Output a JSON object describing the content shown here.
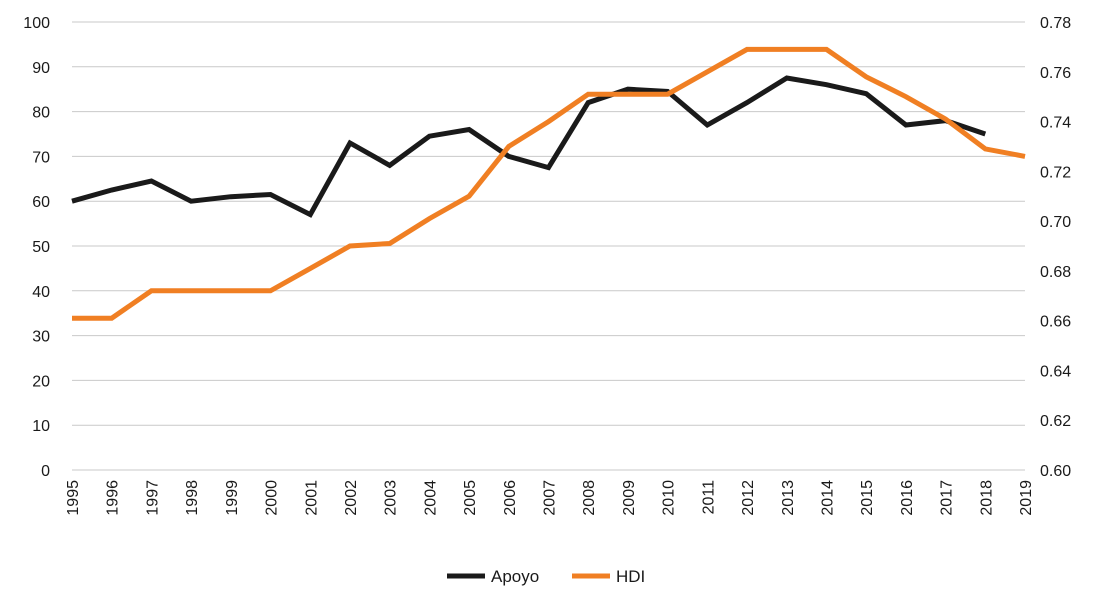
{
  "chart_data": {
    "type": "line",
    "title": "",
    "xlabel": "",
    "ylabel": "",
    "y2label": "",
    "grid": true,
    "legend_position": "bottom-center",
    "categories": [
      "1995",
      "1996",
      "1997",
      "1998",
      "1999",
      "2000",
      "2001",
      "2002",
      "2003",
      "2004",
      "2005",
      "2006",
      "2007",
      "2008",
      "2009",
      "2010",
      "2011",
      "2012",
      "2013",
      "2014",
      "2015",
      "2016",
      "2017",
      "2018",
      "2019"
    ],
    "y_left": {
      "range": [
        0,
        100
      ],
      "ticks": [
        "0",
        "10",
        "20",
        "30",
        "40",
        "50",
        "60",
        "70",
        "80",
        "90",
        "100"
      ]
    },
    "y_right": {
      "range": [
        0.6,
        0.78
      ],
      "ticks": [
        "0.60",
        "0.62",
        "0.64",
        "0.66",
        "0.68",
        "0.70",
        "0.72",
        "0.74",
        "0.76",
        "0.78"
      ]
    },
    "series": [
      {
        "name": "Apoyo",
        "axis": "left",
        "color": "#1a1a1a",
        "values": [
          60,
          62.5,
          64.5,
          60,
          61,
          61.5,
          57,
          73,
          68,
          74.5,
          76,
          70,
          67.5,
          82,
          85,
          84.5,
          77,
          82,
          87.5,
          86,
          84,
          77,
          78,
          75,
          null
        ]
      },
      {
        "name": "HDI",
        "axis": "right",
        "color": "#f07f23",
        "values": [
          0.661,
          0.661,
          0.672,
          0.672,
          0.672,
          0.672,
          0.681,
          0.69,
          0.691,
          0.701,
          0.71,
          0.73,
          0.74,
          0.751,
          0.751,
          0.751,
          0.76,
          0.769,
          0.769,
          0.769,
          0.758,
          0.75,
          0.741,
          0.729,
          0.726
        ]
      }
    ]
  }
}
